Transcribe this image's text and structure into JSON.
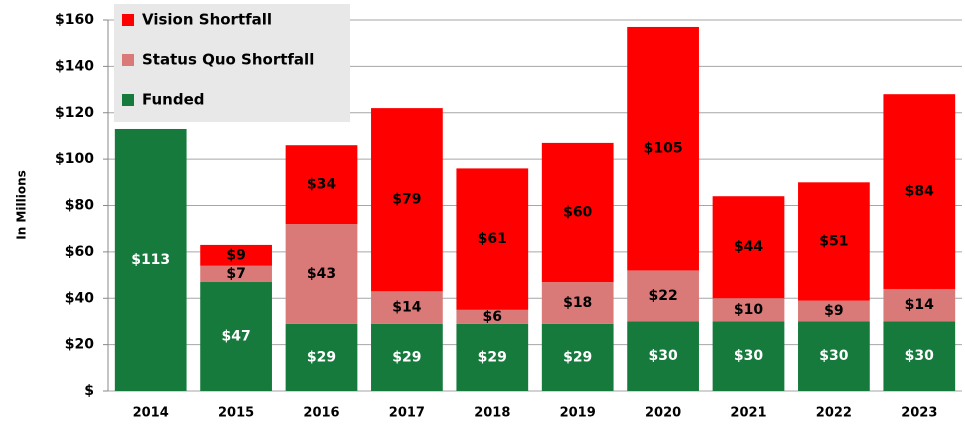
{
  "chart_data": {
    "type": "stacked_bar",
    "y_axis_label": "In Millions",
    "categories": [
      "2014",
      "2015",
      "2016",
      "2017",
      "2018",
      "2019",
      "2020",
      "2021",
      "2022",
      "2023"
    ],
    "series": [
      {
        "name": "Funded",
        "color": "#157a3c",
        "values": [
          113,
          47,
          29,
          29,
          29,
          29,
          30,
          30,
          30,
          30
        ],
        "value_labels": [
          "$113",
          "$47",
          "$29",
          "$29",
          "$29",
          "$29",
          "$30",
          "$30",
          "$30",
          "$30"
        ]
      },
      {
        "name": "Status Quo Shortfall",
        "color": "#da7a78",
        "values": [
          null,
          7,
          43,
          14,
          6,
          18,
          22,
          10,
          9,
          14
        ],
        "value_labels": [
          null,
          "$7",
          "$43",
          "$14",
          "$6",
          "$18",
          "$22",
          "$10",
          "$9",
          "$14"
        ]
      },
      {
        "name": "Vision Shortfall",
        "color": "#ff0000",
        "values": [
          null,
          9,
          34,
          79,
          61,
          60,
          105,
          44,
          51,
          84
        ],
        "value_labels": [
          null,
          "$9",
          "$34",
          "$79",
          "$61",
          "$60",
          "$105",
          "$44",
          "$51",
          "$84"
        ]
      }
    ],
    "ylim": [
      0,
      160
    ],
    "yticks": [
      {
        "value": 0,
        "label": "$"
      },
      {
        "value": 20,
        "label": "$20"
      },
      {
        "value": 40,
        "label": "$40"
      },
      {
        "value": 60,
        "label": "$60"
      },
      {
        "value": 80,
        "label": "$80"
      },
      {
        "value": 100,
        "label": "$100"
      },
      {
        "value": 120,
        "label": "$120"
      },
      {
        "value": 140,
        "label": "$140"
      },
      {
        "value": 160,
        "label": "$160"
      }
    ],
    "grid": true,
    "legend": "top-left"
  }
}
